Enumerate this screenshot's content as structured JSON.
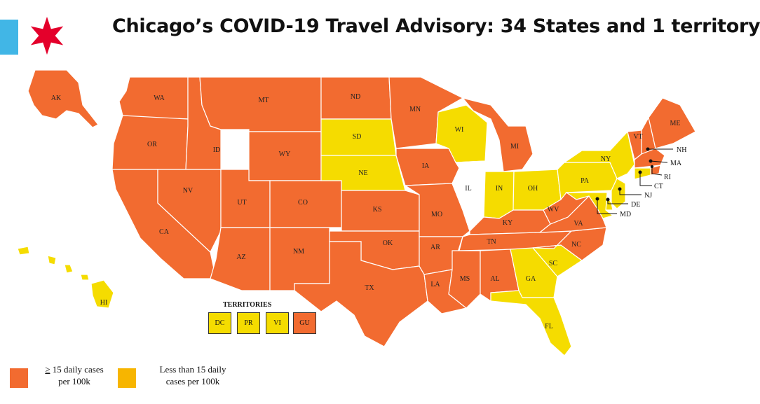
{
  "title": "Chicago’s COVID-19 Travel Advisory: 34 States and 1 territory",
  "colors": {
    "high": "#f26b30",
    "low": "#f5dc00",
    "excluded": "#ffffff",
    "legend_low": "#f7b500",
    "flag_blue": "#41b6e6",
    "flag_star": "#e4002b"
  },
  "icons": {
    "flag_bar": "chicago-flag-bar-icon",
    "flag_star": "chicago-star-icon"
  },
  "states": {
    "AK": "high",
    "WA": "high",
    "OR": "high",
    "CA": "high",
    "ID": "high",
    "NV": "high",
    "MT": "high",
    "WY": "high",
    "UT": "high",
    "AZ": "high",
    "CO": "high",
    "NM": "high",
    "ND": "high",
    "SD": "low",
    "NE": "low",
    "KS": "high",
    "OK": "high",
    "TX": "high",
    "MN": "high",
    "IA": "high",
    "MO": "high",
    "AR": "high",
    "LA": "high",
    "WI": "low",
    "IL": "excluded",
    "MI": "high",
    "IN": "low",
    "OH": "low",
    "KY": "high",
    "TN": "high",
    "MS": "high",
    "AL": "high",
    "GA": "low",
    "FL": "low",
    "SC": "low",
    "NC": "high",
    "VA": "high",
    "WV": "high",
    "PA": "low",
    "NY": "low",
    "VT": "high",
    "NH": "high",
    "ME": "high",
    "MA": "high",
    "RI": "high",
    "CT": "low",
    "NJ": "low",
    "DE": "low",
    "MD": "low",
    "HI": "low"
  },
  "callouts": [
    "NH",
    "MA",
    "RI",
    "CT",
    "NJ",
    "DE",
    "MD"
  ],
  "territories": {
    "title": "TERRITORIES",
    "items": [
      {
        "code": "DC",
        "status": "low"
      },
      {
        "code": "PR",
        "status": "low"
      },
      {
        "code": "VI",
        "status": "low"
      },
      {
        "code": "GU",
        "status": "high"
      }
    ]
  },
  "legend": {
    "high": {
      "symbol": "≥",
      "line1": " 15 daily cases",
      "line2": "per 100k"
    },
    "low": {
      "line1": "Less than 15 daily",
      "line2": "cases per 100k"
    }
  }
}
